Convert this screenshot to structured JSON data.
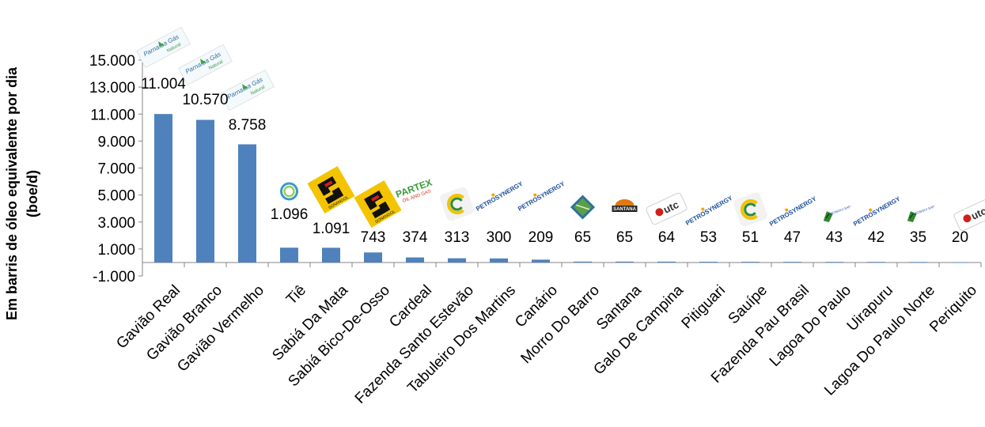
{
  "chart_data": {
    "type": "bar",
    "title": "",
    "xlabel": "",
    "ylabel": "Em barris de óleo equivalente por dia (boe/d)",
    "ylabel_lines": [
      "Em barris de óleo equivalente por dia",
      "(boe/d)"
    ],
    "ylim": [
      -1000,
      15000
    ],
    "yticks": [
      -1000,
      1000,
      3000,
      5000,
      7000,
      9000,
      11000,
      13000,
      15000
    ],
    "ytick_labels": [
      "-1.000",
      "1.000",
      "3.000",
      "5.000",
      "7.000",
      "9.000",
      "11.000",
      "13.000",
      "15.000"
    ],
    "grid": false,
    "bar_color": "#4f81bd",
    "categories": [
      "Gavião Real",
      "Gavião Branco",
      "Gavião Vermelho",
      "Tiê",
      "Sabiá Da Mata",
      "Sabiá Bico-De-Osso",
      "Cardeal",
      "Fazenda Santo Estevão",
      "Tabuleiro Dos Martins",
      "Canário",
      "Morro Do Barro",
      "Santana",
      "Galo De Campina",
      "Pitiguari",
      "Sauípe",
      "Fazenda Pau Brasil",
      "Lagoa Do Paulo",
      "Uirapuru",
      "Lagoa Do Paulo Norte",
      "Periquito"
    ],
    "values": [
      11004,
      10570,
      8758,
      1096,
      1091,
      743,
      374,
      313,
      300,
      209,
      65,
      65,
      64,
      53,
      51,
      47,
      43,
      42,
      35,
      20
    ],
    "value_labels": [
      "11.004",
      "10.570",
      "8.758",
      "1.096",
      "1.091",
      "743",
      "374",
      "313",
      "300",
      "209",
      "65",
      "65",
      "64",
      "53",
      "51",
      "47",
      "43",
      "42",
      "35",
      "20"
    ],
    "operator_logos": [
      "parnaiba-gas-natural",
      "parnaiba-gas-natural",
      "parnaiba-gas-natural",
      "ring",
      "sonangol",
      "sonangol",
      "partex",
      "swirl",
      "petrosynergy",
      "petrosynergy",
      "greenbox",
      "santana",
      "utc",
      "petrosynergy",
      "swirl",
      "petrosynergy",
      "tiger",
      "petrosynergy",
      "tiger",
      "utc"
    ],
    "logo_text": {
      "parnaiba": "Parnaíba Gás",
      "parnaiba_sub": "Natural",
      "partex": "PARTEX",
      "partex_sub": "OIL AND GAS",
      "petro": "PETROSYNERGY",
      "sonangol": "SONANGOL",
      "santana": "SANTANA",
      "utc": "utc",
      "tiger": "GEOSOLV EAP"
    }
  }
}
